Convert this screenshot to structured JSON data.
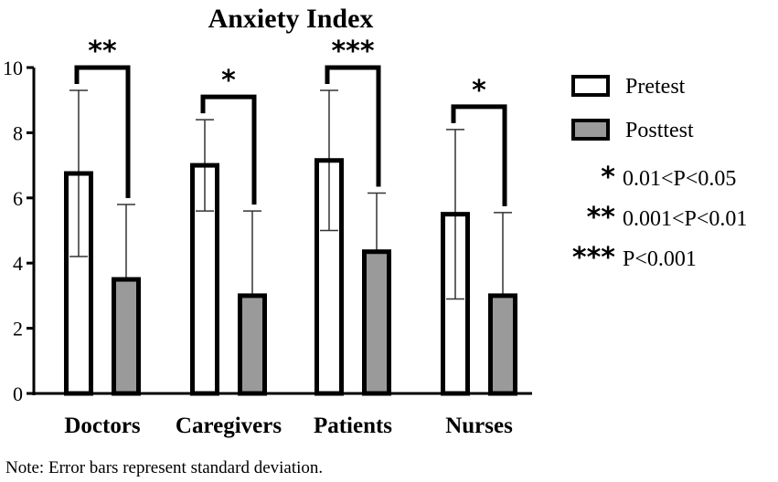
{
  "chart_data": {
    "type": "bar",
    "title": "Anxiety Index",
    "categories": [
      "Doctors",
      "Caregivers",
      "Patients",
      "Nurses"
    ],
    "ylim": [
      0,
      10
    ],
    "yticks": [
      "0",
      "2",
      "4",
      "6",
      "8",
      "10"
    ],
    "series": [
      {
        "name": "Pretest",
        "values": [
          6.75,
          7.0,
          7.15,
          5.5
        ],
        "sd": [
          2.55,
          1.4,
          2.15,
          2.6
        ],
        "fill": "#ffffff"
      },
      {
        "name": "Posttest",
        "values": [
          3.5,
          3.0,
          4.35,
          3.0
        ],
        "sd": [
          2.3,
          2.6,
          1.8,
          2.55
        ],
        "fill": "#9a9a9a"
      }
    ],
    "significance": [
      "**",
      "*",
      "***",
      "*"
    ],
    "legend": {
      "placement": "right",
      "entries": [
        "Pretest",
        "Posttest"
      ],
      "significance_key": [
        {
          "stars": "*",
          "label": "0.01<P<0.05"
        },
        {
          "stars": "**",
          "label": "0.001<P<0.01"
        },
        {
          "stars": "***",
          "label": "P<0.001"
        }
      ]
    },
    "grid": false,
    "xlabel": "",
    "ylabel": ""
  },
  "note": "Note: Error bars represent standard deviation."
}
